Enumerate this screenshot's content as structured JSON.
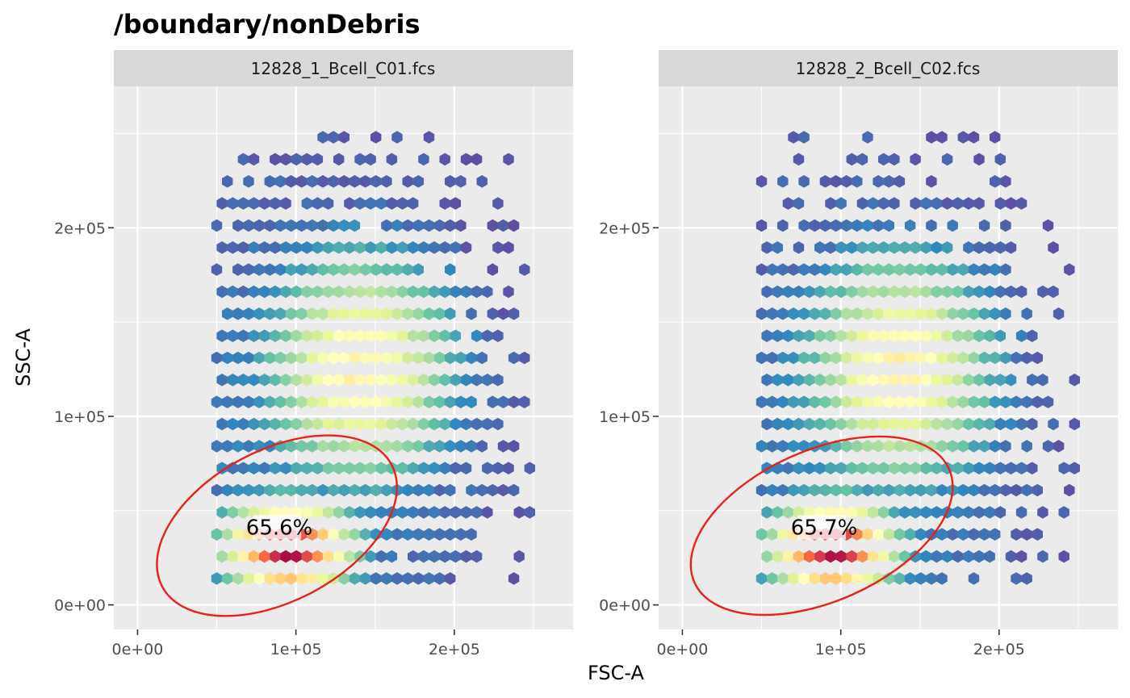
{
  "chart_data": {
    "type": "hexbin",
    "title": "/boundary/nonDebris",
    "xlabel": "FSC-A",
    "ylabel": "SSC-A",
    "xlim": [
      -15000,
      275000
    ],
    "ylim": [
      -13000,
      275000
    ],
    "x_ticks": [
      {
        "value": 0,
        "label": "0e+00"
      },
      {
        "value": 100000,
        "label": "1e+05"
      },
      {
        "value": 200000,
        "label": "2e+05"
      }
    ],
    "y_ticks": [
      {
        "value": 0,
        "label": "0e+00"
      },
      {
        "value": 100000,
        "label": "1e+05"
      },
      {
        "value": 200000,
        "label": "2e+05"
      }
    ],
    "grid": true,
    "color_scale": [
      "#5e4fa2",
      "#3288bd",
      "#66c2a5",
      "#abdda4",
      "#e6f598",
      "#ffffbf",
      "#fee08b",
      "#fdae61",
      "#f46d43",
      "#d53e4f",
      "#9e0142"
    ],
    "gate_color": "#e8221b",
    "panels": [
      {
        "name": "12828_1_Bcell_C01.fcs",
        "gate_label": "65.6%",
        "gate": {
          "cx": 88000,
          "cy": 42000,
          "rx": 82000,
          "ry": 40000,
          "angle_deg": 28
        },
        "main_cluster": {
          "x": 140000,
          "y": 125000
        },
        "debris_cluster": {
          "x": 95000,
          "y": 30000
        }
      },
      {
        "name": "12828_2_Bcell_C02.fcs",
        "gate_label": "65.7%",
        "gate": {
          "cx": 88000,
          "cy": 42000,
          "rx": 88000,
          "ry": 40000,
          "angle_deg": 24
        },
        "main_cluster": {
          "x": 137000,
          "y": 125000
        },
        "debris_cluster": {
          "x": 95000,
          "y": 30000
        }
      }
    ]
  }
}
